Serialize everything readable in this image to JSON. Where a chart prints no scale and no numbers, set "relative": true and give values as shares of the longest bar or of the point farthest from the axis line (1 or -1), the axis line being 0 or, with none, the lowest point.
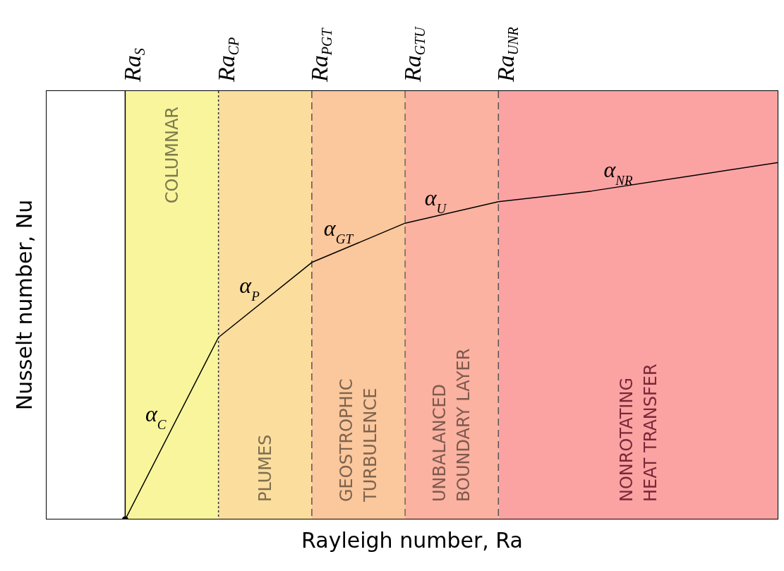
{
  "chart_data": {
    "type": "line",
    "relative": true,
    "xlabel": "Rayleigh number, Ra",
    "ylabel": "Nusselt number, Nu",
    "tick_labels": "x",
    "grid": false,
    "legend": false,
    "categories": [
      "Ra$_{S}$",
      "Ra$_{CP}$",
      "Ra$_{PGT}$",
      "Ra$_{GTU}$",
      "Ra$_{UNR}$",
      null,
      null,
      null
    ],
    "series": [
      {
        "color": "#000000",
        "values": [
          0,
          0.51,
          0.72,
          0.83,
          0.89,
          0.92,
          0.96,
          1
        ]
      },
      {
        "type": "scatter",
        "color": "#000000",
        "x": [
          "Ra$_{S}$"
        ],
        "values": [
          0
        ]
      }
    ],
    "bands": [
      {
        "axis": "x",
        "from": "Ra$_{S}$",
        "to": "Ra$_{CP}$",
        "label": "COLUMNAR",
        "color": "#f8f59c"
      },
      {
        "axis": "x",
        "from": "Ra$_{CP}$",
        "to": "Ra$_{PGT}$",
        "label": "PLUMES",
        "color": "#fbdd9e"
      },
      {
        "axis": "x",
        "from": "Ra$_{PGT}$",
        "to": "Ra$_{GTU}$",
        "label": "GEOSTROPHIC\nTURBULENCE",
        "color": "#fbc79c"
      },
      {
        "axis": "x",
        "from": "Ra$_{GTU}$",
        "to": "Ra$_{UNR}$",
        "label": "UNBALANCED\nBOUNDARY LAYER",
        "color": "#fbb2a0"
      }
    ],
    "ref_lines": [
      {
        "axis": "x",
        "value": "Ra$_{S}$",
        "line_style": "solid",
        "color": "#000000"
      },
      {
        "axis": "x",
        "value": "Ra$_{CP}$",
        "line_style": "dotted",
        "color": "#333333"
      },
      {
        "axis": "x",
        "value": "Ra$_{PGT}$",
        "line_style": "dashed",
        "color": "#555555"
      },
      {
        "axis": "x",
        "value": "Ra$_{GTU}$",
        "line_style": "dashed",
        "color": "#666666"
      },
      {
        "axis": "x",
        "value": "Ra$_{UNR}$",
        "line_style": "dashed",
        "color": "#555555"
      }
    ],
    "annotations": [
      "α$_{C}$",
      "α$_{P}$",
      "α$_{GT}$",
      "α$_{U}$",
      "α$_{NR}$",
      "NONROTATING\nHEAT TRANSFER"
    ]
  }
}
